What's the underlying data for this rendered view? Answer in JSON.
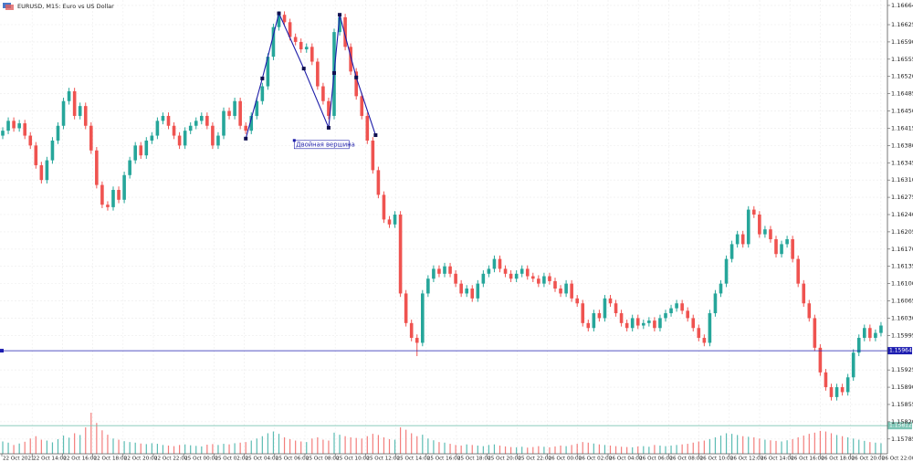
{
  "chart_data": {
    "type": "candlestick",
    "title": "EURUSD, M15:  Euro vs US Dollar",
    "ylim": [
      1.15755,
      1.16675
    ],
    "yticks": [
      1.16664,
      1.16625,
      {
        "value": 1.1659,
        "label": "1.16590"
      },
      1.16555,
      {
        "value": 1.1652,
        "label": "1.16520"
      },
      1.16485,
      {
        "value": 1.1645,
        "label": "1.16450"
      },
      1.16415,
      {
        "value": 1.1638,
        "label": "1.16380"
      },
      1.16345,
      {
        "value": 1.1631,
        "label": "1.16310"
      },
      1.16275,
      {
        "value": 1.1624,
        "label": "1.16240"
      },
      1.16205,
      {
        "value": 1.1617,
        "label": "1.16170"
      },
      1.16135,
      {
        "value": 1.161,
        "label": "1.16100"
      },
      1.16065,
      {
        "value": 1.1603,
        "label": "1.16030"
      },
      1.15995,
      1.15925,
      {
        "value": 1.1589,
        "label": "1.15890"
      },
      1.15855,
      {
        "value": 1.1582,
        "label": "1.15820"
      },
      1.15785
    ],
    "xlabels": [
      "22 Oct 2021",
      "22 Oct 14:00",
      "22 Oct 16:00",
      "22 Oct 18:00",
      "22 Oct 20:00",
      "22 Oct 22:00",
      "25 Oct 00:00",
      "25 Oct 02:00",
      "25 Oct 04:00",
      "25 Oct 06:00",
      "25 Oct 08:00",
      "25 Oct 10:00",
      "25 Oct 12:00",
      "25 Oct 14:00",
      "25 Oct 16:00",
      "25 Oct 18:00",
      "25 Oct 20:00",
      "25 Oct 22:00",
      "26 Oct 00:00",
      "26 Oct 02:00",
      "26 Oct 04:00",
      "26 Oct 06:00",
      "26 Oct 08:00",
      "26 Oct 10:00",
      "26 Oct 12:00",
      "26 Oct 14:00",
      "26 Oct 16:00",
      "26 Oct 18:00",
      "26 Oct 20:00",
      "26 Oct 22:00"
    ],
    "grid": true,
    "up_color": "#26a69a",
    "down_color": "#ef5350",
    "open": [
      1.164,
      1.1641,
      1.1643,
      1.16415,
      1.16425,
      1.164,
      1.1638,
      1.1634,
      1.1631,
      1.1635,
      1.1639,
      1.1642,
      1.1647,
      1.1649,
      1.1644,
      1.1646,
      1.1642,
      1.1637,
      1.163,
      1.1626,
      1.16255,
      1.1629,
      1.1627,
      1.1632,
      1.1635,
      1.1638,
      1.1636,
      1.1639,
      1.164,
      1.1643,
      1.1644,
      1.1642,
      1.164,
      1.1638,
      1.1641,
      1.1642,
      1.1643,
      1.1644,
      1.1642,
      1.1638,
      1.164,
      1.1645,
      1.1644,
      1.1647,
      1.1642,
      1.1641,
      1.1644,
      1.1647,
      1.165,
      1.1656,
      1.1662,
      1.16645,
      1.1663,
      1.166,
      1.1659,
      1.16575,
      1.1658,
      1.1655,
      1.165,
      1.1647,
      1.1644,
      1.1661,
      1.1664,
      1.1658,
      1.1653,
      1.1648,
      1.1644,
      1.1639,
      1.1633,
      1.1628,
      1.1623,
      1.1622,
      1.1624,
      1.1608,
      1.1602,
      1.1599,
      1.1598,
      1.1608,
      1.1611,
      1.1613,
      1.1612,
      1.16135,
      1.1612,
      1.161,
      1.1608,
      1.1609,
      1.1607,
      1.161,
      1.1612,
      1.1613,
      1.1615,
      1.1613,
      1.1612,
      1.1611,
      1.1612,
      1.1613,
      1.16115,
      1.1611,
      1.161,
      1.16115,
      1.16105,
      1.1609,
      1.1608,
      1.161,
      1.1607,
      1.1606,
      1.1602,
      1.1601,
      1.1604,
      1.1603,
      1.1607,
      1.1606,
      1.1604,
      1.1602,
      1.1601,
      1.1603,
      1.16015,
      1.1602,
      1.16025,
      1.1601,
      1.1603,
      1.1604,
      1.1605,
      1.1606,
      1.16045,
      1.1603,
      1.1601,
      1.1599,
      1.1598,
      1.1604,
      1.1608,
      1.161,
      1.1615,
      1.1618,
      1.162,
      1.1618,
      1.1625,
      1.1624,
      1.162,
      1.1621,
      1.1619,
      1.1616,
      1.1618,
      1.1619,
      1.1615,
      1.161,
      1.1606,
      1.1603,
      1.1597,
      1.1592,
      1.1589,
      1.1587,
      1.1589,
      1.1588,
      1.1591,
      1.1596,
      1.1599,
      1.1601,
      1.1599,
      1.16
    ],
    "high": [
      1.16417,
      1.16437,
      1.16437,
      1.16432,
      1.16432,
      1.16407,
      1.16387,
      1.16347,
      1.16357,
      1.16397,
      1.16427,
      1.16477,
      1.16497,
      1.16497,
      1.16467,
      1.16467,
      1.16427,
      1.16377,
      1.16307,
      1.16267,
      1.16297,
      1.16297,
      1.16327,
      1.16357,
      1.16387,
      1.16387,
      1.16397,
      1.16407,
      1.16437,
      1.16447,
      1.16447,
      1.16427,
      1.16407,
      1.16417,
      1.16427,
      1.16437,
      1.16447,
      1.16447,
      1.16427,
      1.16407,
      1.16457,
      1.16457,
      1.16477,
      1.16477,
      1.16427,
      1.16447,
      1.16477,
      1.16507,
      1.16567,
      1.16627,
      1.16652,
      1.16652,
      1.16637,
      1.16607,
      1.16597,
      1.16587,
      1.16587,
      1.16557,
      1.16507,
      1.16477,
      1.16617,
      1.16647,
      1.16647,
      1.16587,
      1.16537,
      1.16487,
      1.16447,
      1.16397,
      1.16337,
      1.16287,
      1.16237,
      1.16247,
      1.16247,
      1.16087,
      1.16027,
      1.15997,
      1.16087,
      1.16117,
      1.16137,
      1.16137,
      1.16142,
      1.16142,
      1.16127,
      1.16107,
      1.16097,
      1.16097,
      1.16107,
      1.16127,
      1.16137,
      1.16157,
      1.16157,
      1.16137,
      1.16127,
      1.16127,
      1.16137,
      1.16137,
      1.16122,
      1.16117,
      1.16122,
      1.16122,
      1.16112,
      1.16097,
      1.16107,
      1.16107,
      1.16077,
      1.16067,
      1.16027,
      1.16047,
      1.16047,
      1.16077,
      1.16077,
      1.16067,
      1.16047,
      1.16027,
      1.16037,
      1.16037,
      1.16027,
      1.16032,
      1.16032,
      1.16037,
      1.16047,
      1.16057,
      1.16067,
      1.16067,
      1.16052,
      1.16037,
      1.16017,
      1.15997,
      1.16047,
      1.16087,
      1.16107,
      1.16157,
      1.16187,
      1.16207,
      1.16207,
      1.16257,
      1.16257,
      1.16247,
      1.16217,
      1.16217,
      1.16197,
      1.16187,
      1.16197,
      1.16197,
      1.16157,
      1.16107,
      1.16067,
      1.16037,
      1.15977,
      1.15927,
      1.15897,
      1.15897,
      1.15897,
      1.15917,
      1.15967,
      1.15997,
      1.16017,
      1.16017,
      1.16007,
      1.16022
    ],
    "low": [
      1.16393,
      1.16403,
      1.16408,
      1.16408,
      1.16393,
      1.16373,
      1.16333,
      1.16303,
      1.16303,
      1.16343,
      1.16383,
      1.16413,
      1.16463,
      1.16433,
      1.16433,
      1.16413,
      1.16363,
      1.16293,
      1.16253,
      1.16248,
      1.16248,
      1.16263,
      1.16263,
      1.16313,
      1.16343,
      1.16353,
      1.16353,
      1.16383,
      1.16393,
      1.16423,
      1.16413,
      1.16393,
      1.16373,
      1.16373,
      1.16403,
      1.16413,
      1.16423,
      1.16413,
      1.16373,
      1.16373,
      1.16393,
      1.16433,
      1.16433,
      1.16413,
      1.16403,
      1.16403,
      1.16433,
      1.16463,
      1.16493,
      1.16553,
      1.16613,
      1.16623,
      1.16593,
      1.16583,
      1.16568,
      1.16568,
      1.16543,
      1.16493,
      1.16463,
      1.16433,
      1.16433,
      1.16603,
      1.16573,
      1.16523,
      1.16473,
      1.16433,
      1.16383,
      1.16323,
      1.16273,
      1.16223,
      1.16213,
      1.16213,
      1.16073,
      1.16013,
      1.15983,
      1.15953,
      1.15973,
      1.16073,
      1.16103,
      1.16113,
      1.16113,
      1.16113,
      1.16093,
      1.16073,
      1.16073,
      1.16063,
      1.16063,
      1.16093,
      1.16113,
      1.16123,
      1.16123,
      1.16113,
      1.16103,
      1.16103,
      1.16113,
      1.16108,
      1.16103,
      1.16093,
      1.16093,
      1.16098,
      1.16083,
      1.16073,
      1.16073,
      1.16063,
      1.16053,
      1.16013,
      1.16003,
      1.16003,
      1.16023,
      1.16023,
      1.16053,
      1.16033,
      1.16013,
      1.16003,
      1.16003,
      1.16008,
      1.16008,
      1.16013,
      1.16003,
      1.16003,
      1.16023,
      1.16033,
      1.16043,
      1.16038,
      1.16023,
      1.16003,
      1.15983,
      1.15973,
      1.15973,
      1.16033,
      1.16073,
      1.16093,
      1.16143,
      1.16173,
      1.16173,
      1.16173,
      1.16233,
      1.16193,
      1.16193,
      1.16183,
      1.16153,
      1.16153,
      1.16173,
      1.16143,
      1.16093,
      1.16053,
      1.16023,
      1.15963,
      1.15913,
      1.15883,
      1.15863,
      1.15863,
      1.15873,
      1.15873,
      1.15903,
      1.15953,
      1.15983,
      1.15983,
      1.15983,
      1.15993
    ],
    "close": [
      1.1641,
      1.1643,
      1.16415,
      1.16425,
      1.164,
      1.1638,
      1.1634,
      1.1631,
      1.1635,
      1.1639,
      1.1642,
      1.1647,
      1.1649,
      1.1644,
      1.1646,
      1.1642,
      1.1637,
      1.163,
      1.1626,
      1.16255,
      1.1629,
      1.1627,
      1.1632,
      1.1635,
      1.1638,
      1.1636,
      1.1639,
      1.164,
      1.1643,
      1.1644,
      1.1642,
      1.164,
      1.1638,
      1.1641,
      1.1642,
      1.1643,
      1.1644,
      1.1642,
      1.1638,
      1.164,
      1.1645,
      1.1644,
      1.1647,
      1.1642,
      1.1641,
      1.1644,
      1.1647,
      1.165,
      1.1656,
      1.1662,
      1.16645,
      1.1663,
      1.166,
      1.1659,
      1.16575,
      1.1658,
      1.1655,
      1.165,
      1.1647,
      1.1644,
      1.1661,
      1.1664,
      1.1658,
      1.1653,
      1.1648,
      1.1644,
      1.1639,
      1.1633,
      1.1628,
      1.1623,
      1.1622,
      1.1624,
      1.1608,
      1.1602,
      1.1599,
      1.1598,
      1.1608,
      1.1611,
      1.1613,
      1.1612,
      1.16135,
      1.1612,
      1.161,
      1.1608,
      1.1609,
      1.1607,
      1.161,
      1.1612,
      1.1613,
      1.1615,
      1.1613,
      1.1612,
      1.1611,
      1.1612,
      1.1613,
      1.16115,
      1.1611,
      1.161,
      1.16115,
      1.16105,
      1.1609,
      1.1608,
      1.161,
      1.1607,
      1.1606,
      1.1602,
      1.1601,
      1.1604,
      1.1603,
      1.1607,
      1.1606,
      1.1604,
      1.1602,
      1.1601,
      1.1603,
      1.16015,
      1.1602,
      1.16025,
      1.1601,
      1.1603,
      1.1604,
      1.1605,
      1.1606,
      1.16045,
      1.1603,
      1.1601,
      1.1599,
      1.1598,
      1.1604,
      1.1608,
      1.161,
      1.1615,
      1.1618,
      1.162,
      1.1618,
      1.1625,
      1.1624,
      1.162,
      1.1621,
      1.1619,
      1.1616,
      1.1618,
      1.1619,
      1.1615,
      1.161,
      1.1606,
      1.1603,
      1.1597,
      1.1592,
      1.1589,
      1.1587,
      1.1589,
      1.1588,
      1.1591,
      1.1596,
      1.1599,
      1.1601,
      1.1599,
      1.16,
      1.16015
    ],
    "volumes": [
      420,
      380,
      300,
      350,
      410,
      520,
      600,
      480,
      450,
      390,
      500,
      620,
      550,
      700,
      640,
      900,
      1400,
      1050,
      800,
      650,
      520,
      480,
      430,
      400,
      380,
      350,
      330,
      360,
      340,
      300,
      280,
      260,
      300,
      320,
      290,
      270,
      250,
      310,
      330,
      300,
      340,
      320,
      360,
      380,
      400,
      450,
      520,
      600,
      700,
      760,
      680,
      560,
      500,
      450,
      420,
      400,
      520,
      560,
      480,
      450,
      720,
      650,
      600,
      560,
      540,
      520,
      600,
      680,
      640,
      560,
      500,
      480,
      900,
      820,
      700,
      600,
      650,
      520,
      460,
      400,
      380,
      340,
      300,
      280,
      320,
      300,
      280,
      260,
      300,
      320,
      280,
      250,
      230,
      220,
      240,
      210,
      230,
      260,
      240,
      220,
      250,
      280,
      260,
      300,
      340,
      400,
      380,
      350,
      320,
      300,
      280,
      260,
      240,
      230,
      220,
      250,
      260,
      240,
      300,
      280,
      260,
      280,
      300,
      320,
      340,
      380,
      420,
      450,
      500,
      560,
      620,
      700,
      680,
      640,
      600,
      580,
      560,
      520,
      480,
      460,
      440,
      420,
      460,
      500,
      560,
      620,
      680,
      720,
      780,
      760,
      700,
      640,
      600,
      560,
      520,
      480,
      440,
      400,
      380,
      360
    ],
    "pattern": {
      "label": "Двойная вершина",
      "color": "#1c1ca8",
      "index": [
        44,
        47,
        50,
        54.5,
        59,
        60,
        61,
        64,
        67.5
      ],
      "price": [
        1.16394,
        1.16516,
        1.16648,
        1.16536,
        1.16416,
        1.16527,
        1.16645,
        1.16518,
        1.16401
      ]
    },
    "lines": [
      {
        "value": 1.15964,
        "color": "#1c1cb0"
      },
      {
        "value": 1.15812,
        "color": "#7cc5b5"
      }
    ]
  }
}
